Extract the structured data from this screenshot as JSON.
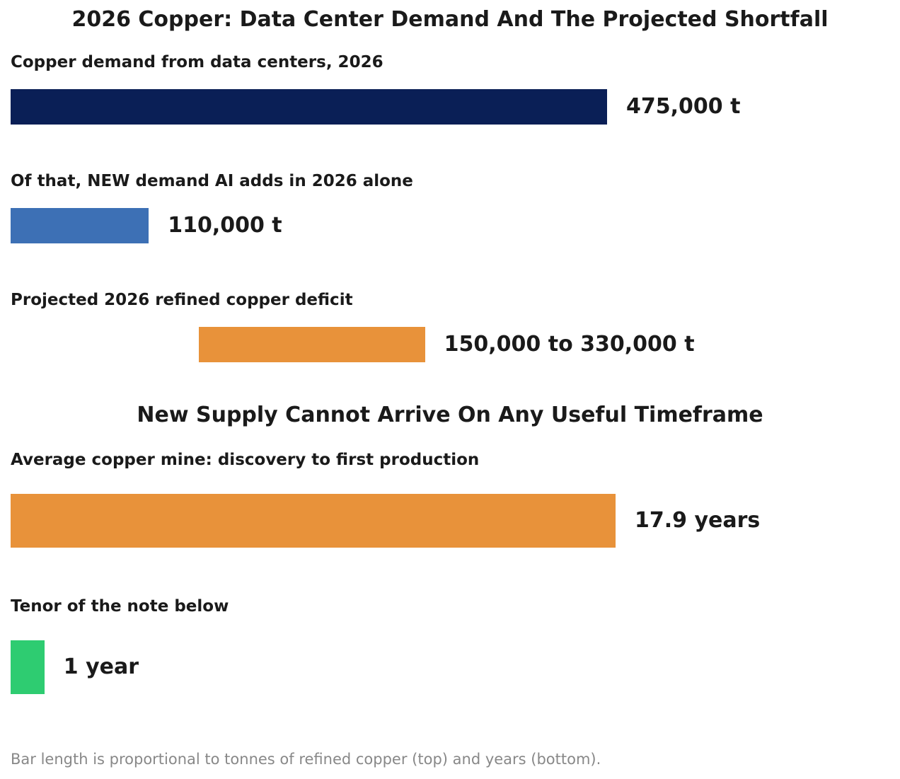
{
  "chart_data": [
    {
      "type": "bar",
      "orientation": "horizontal",
      "title": "2026 Copper: Data Center Demand And The Projected Shortfall",
      "unit": "t",
      "items": [
        {
          "label": "Copper demand from data centers, 2026",
          "start": 0,
          "end": 475000,
          "value_text": "475,000 t",
          "color": "#0a1f56"
        },
        {
          "label": "Of that, NEW demand AI adds in 2026 alone",
          "start": 0,
          "end": 110000,
          "value_text": "110,000 t",
          "color": "#3d70b5"
        },
        {
          "label": "Projected 2026 refined copper deficit",
          "start": 150000,
          "end": 330000,
          "value_text": "150,000 to 330,000 t",
          "color": "#e8923a"
        }
      ]
    },
    {
      "type": "bar",
      "orientation": "horizontal",
      "title": "New Supply Cannot Arrive On Any Useful Timeframe",
      "unit": "years",
      "items": [
        {
          "label": "Average copper mine: discovery to first production",
          "start": 0,
          "end": 17.9,
          "value_text": "17.9 years",
          "color": "#e8923a"
        },
        {
          "label": "Tenor of the note below",
          "start": 0,
          "end": 1,
          "value_text": "1 year",
          "color": "#2ecc71"
        }
      ]
    }
  ],
  "footnote": "Bar length is proportional to tonnes of refined copper (top) and years (bottom)."
}
